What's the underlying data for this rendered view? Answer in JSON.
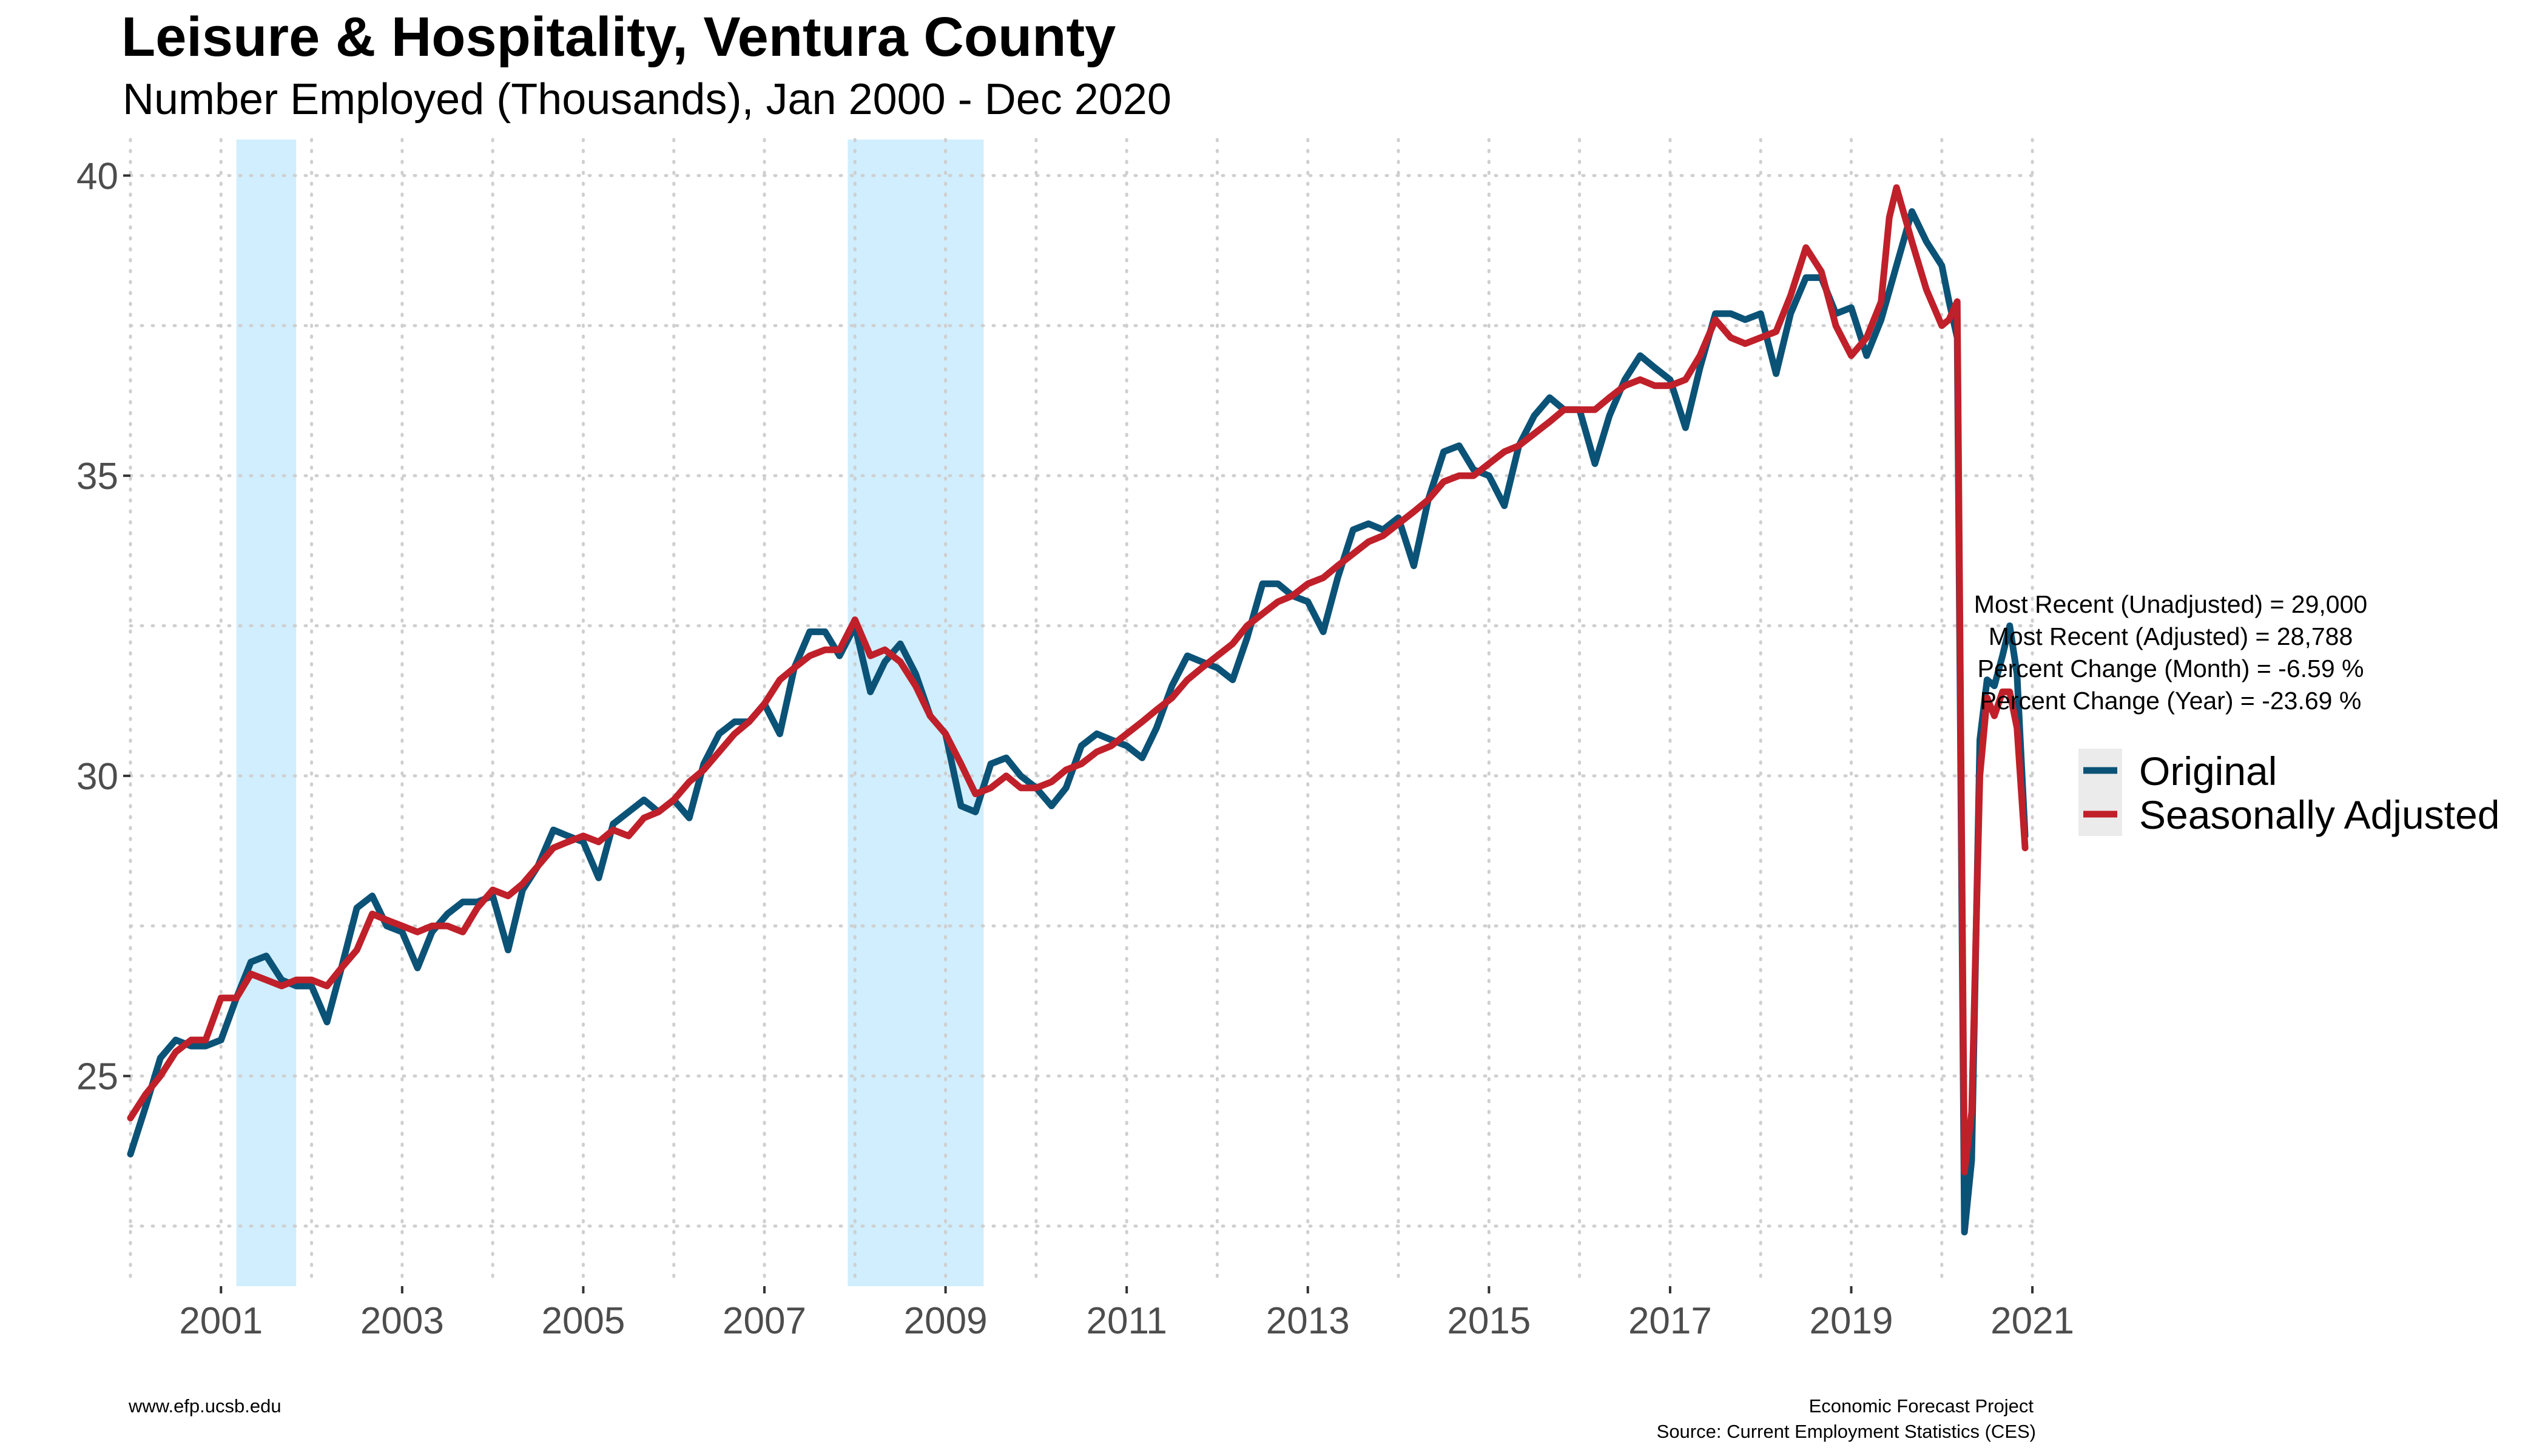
{
  "chart_data": {
    "type": "line",
    "title": "Leisure & Hospitality, Ventura County",
    "subtitle": "Number Employed (Thousands), Jan 2000 - Dec 2020",
    "xlabel": "",
    "ylabel": "",
    "x_range": [
      2000.0,
      2021.1
    ],
    "ylim": [
      21.5,
      40.6
    ],
    "y_ticks": [
      25,
      30,
      35,
      40
    ],
    "y_tick_labels": [
      "25",
      "30",
      "35",
      "40"
    ],
    "x_ticks": [
      2001,
      2003,
      2005,
      2007,
      2009,
      2011,
      2013,
      2015,
      2017,
      2019,
      2021
    ],
    "x_tick_labels": [
      "2001",
      "2003",
      "2005",
      "2007",
      "2009",
      "2011",
      "2013",
      "2015",
      "2017",
      "2019",
      "2021"
    ],
    "grid": true,
    "legend_position": "right",
    "recession_bands": [
      {
        "start": 2001.17,
        "end": 2001.83
      },
      {
        "start": 2007.92,
        "end": 2009.42
      }
    ],
    "series": [
      {
        "name": "Original",
        "color": "#0b5277",
        "points": [
          [
            2000.0,
            23.7
          ],
          [
            2000.17,
            24.5
          ],
          [
            2000.33,
            25.3
          ],
          [
            2000.5,
            25.6
          ],
          [
            2000.67,
            25.5
          ],
          [
            2000.83,
            25.5
          ],
          [
            2001.0,
            25.6
          ],
          [
            2001.17,
            26.3
          ],
          [
            2001.33,
            26.9
          ],
          [
            2001.5,
            27.0
          ],
          [
            2001.67,
            26.6
          ],
          [
            2001.83,
            26.5
          ],
          [
            2002.0,
            26.5
          ],
          [
            2002.17,
            25.9
          ],
          [
            2002.33,
            26.8
          ],
          [
            2002.5,
            27.8
          ],
          [
            2002.67,
            28.0
          ],
          [
            2002.83,
            27.5
          ],
          [
            2003.0,
            27.4
          ],
          [
            2003.17,
            26.8
          ],
          [
            2003.33,
            27.4
          ],
          [
            2003.5,
            27.7
          ],
          [
            2003.67,
            27.9
          ],
          [
            2003.83,
            27.9
          ],
          [
            2004.0,
            28.0
          ],
          [
            2004.17,
            27.1
          ],
          [
            2004.33,
            28.1
          ],
          [
            2004.5,
            28.5
          ],
          [
            2004.67,
            29.1
          ],
          [
            2004.83,
            29.0
          ],
          [
            2005.0,
            28.9
          ],
          [
            2005.17,
            28.3
          ],
          [
            2005.33,
            29.2
          ],
          [
            2005.5,
            29.4
          ],
          [
            2005.67,
            29.6
          ],
          [
            2005.83,
            29.4
          ],
          [
            2006.0,
            29.6
          ],
          [
            2006.17,
            29.3
          ],
          [
            2006.33,
            30.2
          ],
          [
            2006.5,
            30.7
          ],
          [
            2006.67,
            30.9
          ],
          [
            2006.83,
            30.9
          ],
          [
            2007.0,
            31.2
          ],
          [
            2007.17,
            30.7
          ],
          [
            2007.33,
            31.8
          ],
          [
            2007.5,
            32.4
          ],
          [
            2007.67,
            32.4
          ],
          [
            2007.83,
            32.0
          ],
          [
            2008.0,
            32.5
          ],
          [
            2008.17,
            31.4
          ],
          [
            2008.33,
            31.9
          ],
          [
            2008.5,
            32.2
          ],
          [
            2008.67,
            31.7
          ],
          [
            2008.83,
            31.0
          ],
          [
            2009.0,
            30.7
          ],
          [
            2009.17,
            29.5
          ],
          [
            2009.33,
            29.4
          ],
          [
            2009.5,
            30.2
          ],
          [
            2009.67,
            30.3
          ],
          [
            2009.83,
            30.0
          ],
          [
            2010.0,
            29.8
          ],
          [
            2010.17,
            29.5
          ],
          [
            2010.33,
            29.8
          ],
          [
            2010.5,
            30.5
          ],
          [
            2010.67,
            30.7
          ],
          [
            2010.83,
            30.6
          ],
          [
            2011.0,
            30.5
          ],
          [
            2011.17,
            30.3
          ],
          [
            2011.33,
            30.8
          ],
          [
            2011.5,
            31.5
          ],
          [
            2011.67,
            32.0
          ],
          [
            2011.83,
            31.9
          ],
          [
            2012.0,
            31.8
          ],
          [
            2012.17,
            31.6
          ],
          [
            2012.33,
            32.3
          ],
          [
            2012.5,
            33.2
          ],
          [
            2012.67,
            33.2
          ],
          [
            2012.83,
            33.0
          ],
          [
            2013.0,
            32.9
          ],
          [
            2013.17,
            32.4
          ],
          [
            2013.33,
            33.3
          ],
          [
            2013.5,
            34.1
          ],
          [
            2013.67,
            34.2
          ],
          [
            2013.83,
            34.1
          ],
          [
            2014.0,
            34.3
          ],
          [
            2014.17,
            33.5
          ],
          [
            2014.33,
            34.6
          ],
          [
            2014.5,
            35.4
          ],
          [
            2014.67,
            35.5
          ],
          [
            2014.83,
            35.1
          ],
          [
            2015.0,
            35.0
          ],
          [
            2015.17,
            34.5
          ],
          [
            2015.33,
            35.5
          ],
          [
            2015.5,
            36.0
          ],
          [
            2015.67,
            36.3
          ],
          [
            2015.83,
            36.1
          ],
          [
            2016.0,
            36.1
          ],
          [
            2016.17,
            35.2
          ],
          [
            2016.33,
            36.0
          ],
          [
            2016.5,
            36.6
          ],
          [
            2016.67,
            37.0
          ],
          [
            2016.83,
            36.8
          ],
          [
            2017.0,
            36.6
          ],
          [
            2017.17,
            35.8
          ],
          [
            2017.33,
            36.8
          ],
          [
            2017.5,
            37.7
          ],
          [
            2017.67,
            37.7
          ],
          [
            2017.83,
            37.6
          ],
          [
            2018.0,
            37.7
          ],
          [
            2018.17,
            36.7
          ],
          [
            2018.33,
            37.7
          ],
          [
            2018.5,
            38.3
          ],
          [
            2018.67,
            38.3
          ],
          [
            2018.83,
            37.7
          ],
          [
            2019.0,
            37.8
          ],
          [
            2019.17,
            37.0
          ],
          [
            2019.33,
            37.6
          ],
          [
            2019.5,
            38.5
          ],
          [
            2019.67,
            39.4
          ],
          [
            2019.83,
            38.9
          ],
          [
            2020.0,
            38.5
          ],
          [
            2020.08,
            37.9
          ],
          [
            2020.17,
            37.3
          ],
          [
            2020.25,
            22.4
          ],
          [
            2020.33,
            23.6
          ],
          [
            2020.42,
            30.6
          ],
          [
            2020.5,
            31.6
          ],
          [
            2020.58,
            31.5
          ],
          [
            2020.67,
            32.0
          ],
          [
            2020.75,
            32.5
          ],
          [
            2020.83,
            31.7
          ],
          [
            2020.92,
            29.0
          ]
        ]
      },
      {
        "name": "Seasonally Adjusted",
        "color": "#c0202a",
        "points": [
          [
            2000.0,
            24.3
          ],
          [
            2000.17,
            24.7
          ],
          [
            2000.33,
            25.0
          ],
          [
            2000.5,
            25.4
          ],
          [
            2000.67,
            25.6
          ],
          [
            2000.83,
            25.6
          ],
          [
            2001.0,
            26.3
          ],
          [
            2001.17,
            26.3
          ],
          [
            2001.33,
            26.7
          ],
          [
            2001.5,
            26.6
          ],
          [
            2001.67,
            26.5
          ],
          [
            2001.83,
            26.6
          ],
          [
            2002.0,
            26.6
          ],
          [
            2002.17,
            26.5
          ],
          [
            2002.33,
            26.8
          ],
          [
            2002.5,
            27.1
          ],
          [
            2002.67,
            27.7
          ],
          [
            2002.83,
            27.6
          ],
          [
            2003.0,
            27.5
          ],
          [
            2003.17,
            27.4
          ],
          [
            2003.33,
            27.5
          ],
          [
            2003.5,
            27.5
          ],
          [
            2003.67,
            27.4
          ],
          [
            2003.83,
            27.8
          ],
          [
            2004.0,
            28.1
          ],
          [
            2004.17,
            28.0
          ],
          [
            2004.33,
            28.2
          ],
          [
            2004.5,
            28.5
          ],
          [
            2004.67,
            28.8
          ],
          [
            2004.83,
            28.9
          ],
          [
            2005.0,
            29.0
          ],
          [
            2005.17,
            28.9
          ],
          [
            2005.33,
            29.1
          ],
          [
            2005.5,
            29.0
          ],
          [
            2005.67,
            29.3
          ],
          [
            2005.83,
            29.4
          ],
          [
            2006.0,
            29.6
          ],
          [
            2006.17,
            29.9
          ],
          [
            2006.33,
            30.1
          ],
          [
            2006.5,
            30.4
          ],
          [
            2006.67,
            30.7
          ],
          [
            2006.83,
            30.9
          ],
          [
            2007.0,
            31.2
          ],
          [
            2007.17,
            31.6
          ],
          [
            2007.33,
            31.8
          ],
          [
            2007.5,
            32.0
          ],
          [
            2007.67,
            32.1
          ],
          [
            2007.83,
            32.1
          ],
          [
            2008.0,
            32.6
          ],
          [
            2008.17,
            32.0
          ],
          [
            2008.33,
            32.1
          ],
          [
            2008.5,
            31.9
          ],
          [
            2008.67,
            31.5
          ],
          [
            2008.83,
            31.0
          ],
          [
            2009.0,
            30.7
          ],
          [
            2009.17,
            30.2
          ],
          [
            2009.33,
            29.7
          ],
          [
            2009.5,
            29.8
          ],
          [
            2009.67,
            30.0
          ],
          [
            2009.83,
            29.8
          ],
          [
            2010.0,
            29.8
          ],
          [
            2010.17,
            29.9
          ],
          [
            2010.33,
            30.1
          ],
          [
            2010.5,
            30.2
          ],
          [
            2010.67,
            30.4
          ],
          [
            2010.83,
            30.5
          ],
          [
            2011.0,
            30.7
          ],
          [
            2011.17,
            30.9
          ],
          [
            2011.33,
            31.1
          ],
          [
            2011.5,
            31.3
          ],
          [
            2011.67,
            31.6
          ],
          [
            2011.83,
            31.8
          ],
          [
            2012.0,
            32.0
          ],
          [
            2012.17,
            32.2
          ],
          [
            2012.33,
            32.5
          ],
          [
            2012.5,
            32.7
          ],
          [
            2012.67,
            32.9
          ],
          [
            2012.83,
            33.0
          ],
          [
            2013.0,
            33.2
          ],
          [
            2013.17,
            33.3
          ],
          [
            2013.33,
            33.5
          ],
          [
            2013.5,
            33.7
          ],
          [
            2013.67,
            33.9
          ],
          [
            2013.83,
            34.0
          ],
          [
            2014.0,
            34.2
          ],
          [
            2014.17,
            34.4
          ],
          [
            2014.33,
            34.6
          ],
          [
            2014.5,
            34.9
          ],
          [
            2014.67,
            35.0
          ],
          [
            2014.83,
            35.0
          ],
          [
            2015.0,
            35.2
          ],
          [
            2015.17,
            35.4
          ],
          [
            2015.33,
            35.5
          ],
          [
            2015.5,
            35.7
          ],
          [
            2015.67,
            35.9
          ],
          [
            2015.83,
            36.1
          ],
          [
            2016.0,
            36.1
          ],
          [
            2016.17,
            36.1
          ],
          [
            2016.33,
            36.3
          ],
          [
            2016.5,
            36.5
          ],
          [
            2016.67,
            36.6
          ],
          [
            2016.83,
            36.5
          ],
          [
            2017.0,
            36.5
          ],
          [
            2017.17,
            36.6
          ],
          [
            2017.33,
            37.0
          ],
          [
            2017.5,
            37.6
          ],
          [
            2017.67,
            37.3
          ],
          [
            2017.83,
            37.2
          ],
          [
            2018.0,
            37.3
          ],
          [
            2018.17,
            37.4
          ],
          [
            2018.33,
            38.0
          ],
          [
            2018.5,
            38.8
          ],
          [
            2018.67,
            38.4
          ],
          [
            2018.83,
            37.5
          ],
          [
            2019.0,
            37.0
          ],
          [
            2019.17,
            37.3
          ],
          [
            2019.33,
            37.9
          ],
          [
            2019.42,
            39.3
          ],
          [
            2019.5,
            39.8
          ],
          [
            2019.67,
            38.9
          ],
          [
            2019.83,
            38.1
          ],
          [
            2020.0,
            37.5
          ],
          [
            2020.08,
            37.6
          ],
          [
            2020.17,
            37.9
          ],
          [
            2020.25,
            23.4
          ],
          [
            2020.33,
            24.4
          ],
          [
            2020.42,
            30.0
          ],
          [
            2020.5,
            31.3
          ],
          [
            2020.58,
            31.0
          ],
          [
            2020.67,
            31.4
          ],
          [
            2020.75,
            31.4
          ],
          [
            2020.83,
            30.8
          ],
          [
            2020.92,
            28.8
          ]
        ]
      }
    ]
  },
  "stats": {
    "line1": "Most Recent (Unadjusted) = 29,000",
    "line2": "Most Recent (Adjusted) = 28,788",
    "line3": "Percent Change (Month) = -6.59 %",
    "line4": "Percent Change (Year) = -23.69 %"
  },
  "footer": {
    "website": "www.efp.ucsb.edu",
    "org": "Economic Forecast Project",
    "source": "Source: Current Employment Statistics (CES)"
  },
  "colors": {
    "recession_band": "#d0eefd",
    "legend_key_bg": "#ebebeb"
  }
}
